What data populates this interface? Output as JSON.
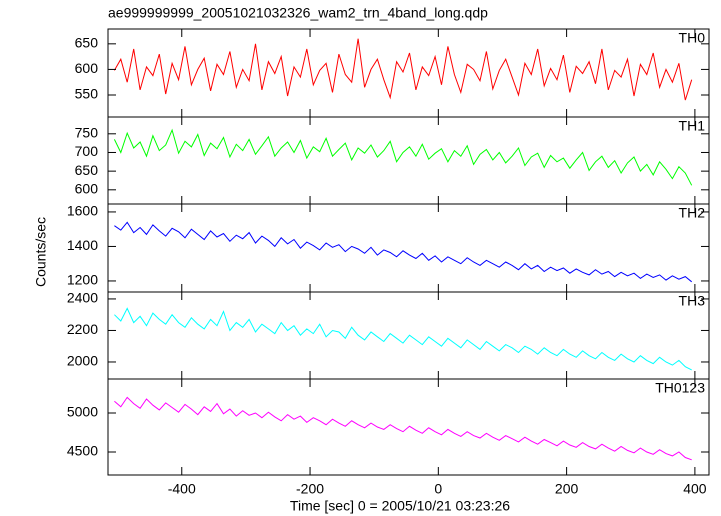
{
  "chart_data": {
    "type": "line",
    "title": "ae999999999_20051021032326_wam2_trn_4band_long.qdp",
    "y_label": "Counts/sec",
    "x_label": "Time [sec] 0 = 2005/10/21 03:23:26",
    "xlim": [
      -515,
      422
    ],
    "xticks": [
      -400,
      -200,
      0,
      200,
      400
    ],
    "x": [
      -505,
      -495,
      -485,
      -475,
      -465,
      -455,
      -445,
      -435,
      -425,
      -415,
      -405,
      -395,
      -385,
      -375,
      -365,
      -355,
      -345,
      -335,
      -325,
      -315,
      -305,
      -295,
      -285,
      -275,
      -265,
      -255,
      -245,
      -235,
      -225,
      -215,
      -205,
      -195,
      -185,
      -175,
      -165,
      -155,
      -145,
      -135,
      -125,
      -115,
      -105,
      -95,
      -85,
      -75,
      -65,
      -55,
      -45,
      -35,
      -25,
      -15,
      -5,
      5,
      15,
      25,
      35,
      45,
      55,
      65,
      75,
      85,
      95,
      105,
      115,
      125,
      135,
      145,
      155,
      165,
      175,
      185,
      195,
      205,
      215,
      225,
      235,
      245,
      255,
      265,
      275,
      285,
      295,
      305,
      315,
      325,
      335,
      345,
      355,
      365,
      375,
      385,
      395
    ],
    "series": [
      {
        "name": "TH0",
        "color": "#ff0000",
        "ylim": [
          507,
          679
        ],
        "yticks": [
          550,
          600,
          650
        ],
        "values": [
          598,
          620,
          575,
          640,
          560,
          605,
          588,
          630,
          552,
          612,
          580,
          645,
          570,
          600,
          622,
          558,
          610,
          590,
          635,
          565,
          600,
          578,
          650,
          560,
          615,
          592,
          625,
          548,
          605,
          585,
          640,
          570,
          598,
          612,
          555,
          630,
          590,
          575,
          660,
          565,
          600,
          620,
          580,
          545,
          615,
          595,
          632,
          560,
          605,
          588,
          625,
          570,
          645,
          590,
          555,
          610,
          600,
          578,
          635,
          562,
          598,
          620,
          585,
          550,
          612,
          590,
          640,
          568,
          602,
          580,
          628,
          555,
          606,
          592,
          615,
          572,
          640,
          560,
          598,
          585,
          620,
          548,
          610,
          590,
          632,
          565,
          600,
          575,
          612,
          540,
          580
        ]
      },
      {
        "name": "TH1",
        "color": "#00ff00",
        "ylim": [
          562,
          795
        ],
        "yticks": [
          600,
          650,
          700,
          750
        ],
        "values": [
          735,
          700,
          752,
          712,
          728,
          690,
          745,
          705,
          720,
          760,
          698,
          730,
          715,
          748,
          692,
          725,
          710,
          740,
          688,
          722,
          705,
          735,
          695,
          718,
          742,
          690,
          712,
          728,
          700,
          732,
          685,
          715,
          702,
          738,
          690,
          708,
          725,
          680,
          712,
          698,
          720,
          688,
          705,
          730,
          675,
          700,
          715,
          690,
          722,
          682,
          698,
          710,
          675,
          705,
          690,
          718,
          668,
          695,
          708,
          680,
          700,
          672,
          690,
          712,
          665,
          688,
          698,
          660,
          692,
          675,
          685,
          658,
          680,
          700,
          652,
          675,
          690,
          660,
          678,
          645,
          672,
          688,
          650,
          668,
          640,
          675,
          655,
          630,
          662,
          645,
          612
        ]
      },
      {
        "name": "TH2",
        "color": "#0000ff",
        "ylim": [
          1136,
          1646
        ],
        "yticks": [
          1200,
          1400,
          1600
        ],
        "values": [
          1520,
          1495,
          1540,
          1480,
          1510,
          1470,
          1525,
          1490,
          1460,
          1505,
          1485,
          1450,
          1500,
          1470,
          1440,
          1490,
          1455,
          1475,
          1430,
          1465,
          1445,
          1480,
          1420,
          1460,
          1435,
          1400,
          1450,
          1415,
          1440,
          1390,
          1425,
          1405,
          1380,
          1420,
          1395,
          1410,
          1370,
          1400,
          1385,
          1360,
          1395,
          1350,
          1380,
          1365,
          1340,
          1375,
          1350,
          1330,
          1360,
          1320,
          1345,
          1310,
          1340,
          1320,
          1300,
          1335,
          1310,
          1290,
          1320,
          1300,
          1280,
          1310,
          1290,
          1265,
          1300,
          1270,
          1290,
          1255,
          1280,
          1260,
          1275,
          1245,
          1270,
          1250,
          1235,
          1265,
          1240,
          1255,
          1225,
          1250,
          1230,
          1245,
          1215,
          1240,
          1220,
          1235,
          1205,
          1230,
          1210,
          1225,
          1195
        ]
      },
      {
        "name": "TH3",
        "color": "#00ffff",
        "ylim": [
          1892,
          2444
        ],
        "yticks": [
          2000,
          2200,
          2400
        ],
        "values": [
          2300,
          2260,
          2340,
          2250,
          2290,
          2230,
          2310,
          2270,
          2240,
          2300,
          2250,
          2220,
          2280,
          2240,
          2210,
          2270,
          2230,
          2320,
          2200,
          2250,
          2220,
          2270,
          2190,
          2240,
          2210,
          2180,
          2250,
          2200,
          2230,
          2170,
          2210,
          2180,
          2240,
          2160,
          2200,
          2190,
          2150,
          2220,
          2170,
          2140,
          2190,
          2160,
          2130,
          2180,
          2150,
          2120,
          2170,
          2140,
          2110,
          2160,
          2130,
          2100,
          2150,
          2120,
          2090,
          2140,
          2110,
          2080,
          2130,
          2100,
          2070,
          2110,
          2090,
          2060,
          2100,
          2080,
          2050,
          2090,
          2060,
          2040,
          2080,
          2050,
          2030,
          2070,
          2040,
          2020,
          2060,
          2030,
          2010,
          2050,
          2020,
          2000,
          2040,
          2010,
          1990,
          2030,
          2000,
          1980,
          2010,
          1970,
          1950
        ]
      },
      {
        "name": "TH0123",
        "color": "#ff00ff",
        "ylim": [
          4205,
          5436
        ],
        "yticks": [
          4500,
          5000
        ],
        "values": [
          5150,
          5080,
          5200,
          5120,
          5060,
          5180,
          5100,
          5040,
          5130,
          5070,
          5010,
          5110,
          5050,
          4980,
          5080,
          5020,
          5120,
          4990,
          5050,
          4960,
          5030,
          4970,
          5000,
          4940,
          5010,
          4950,
          4900,
          4980,
          4920,
          4960,
          4880,
          4940,
          4900,
          4850,
          4920,
          4870,
          4830,
          4900,
          4850,
          4810,
          4870,
          4820,
          4790,
          4850,
          4800,
          4760,
          4830,
          4780,
          4740,
          4810,
          4760,
          4720,
          4790,
          4740,
          4700,
          4760,
          4710,
          4680,
          4740,
          4690,
          4650,
          4710,
          4670,
          4630,
          4690,
          4640,
          4600,
          4660,
          4620,
          4580,
          4640,
          4590,
          4560,
          4620,
          4570,
          4540,
          4600,
          4550,
          4510,
          4570,
          4520,
          4490,
          4550,
          4500,
          4470,
          4530,
          4480,
          4450,
          4500,
          4430,
          4400
        ]
      }
    ]
  }
}
